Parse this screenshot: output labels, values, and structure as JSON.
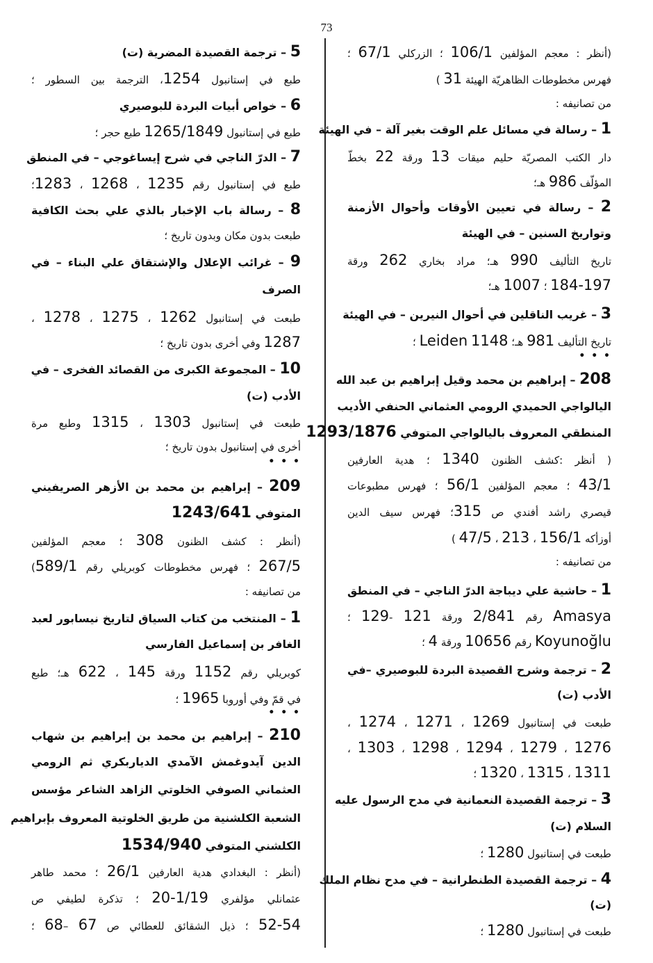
{
  "page_number": "73",
  "columns": [
    {
      "id": "right",
      "lines": [
        {
          "text": "(أنظر : معجم المؤلفين 106/1 ؛ الزركلي 67/1 ؛",
          "bold": false
        },
        {
          "text": "فهرس مخطوطات الظاهريّة الهيئة 31 )",
          "bold": false
        },
        {
          "text": "من تصانيفه :",
          "bold": false
        },
        {
          "text": "1 – رسالة في مسائل علم الوقت بغير آلة – في الهيئة",
          "bold": true
        },
        {
          "text": "دار الكتب المصريّة حليم ميقات 13 ورقة 22 بخطّ",
          "bold": false
        },
        {
          "text": "المؤلّف 986 هـ؛",
          "bold": false
        },
        {
          "text": "2 – رسالة في تعيين الأوقات وأحوال الأزمنة",
          "bold": true
        },
        {
          "text": "وتواريخ السنين – في الهيئة",
          "bold": true
        },
        {
          "text": "تاريخ التأليف 990 هـ؛ مراد بخاري 262 ورقة",
          "bold": false
        },
        {
          "text": "184-197 ؛ 1007 هـ؛",
          "bold": false
        },
        {
          "text": "3 – غريب الناقلين في أحوال النيرين – في الهيئة",
          "bold": true
        },
        {
          "text": "تاريخ التأليف 981 هـ؛ Leiden 1148 ؛",
          "bold": false
        },
        {
          "text": "• • •",
          "bold": true,
          "dots": true
        },
        {
          "text": "208 – إبراهيم بن محمد وقيل إبراهيم بن عبد الله",
          "bold": true
        },
        {
          "text": "اليالواجي الحميدي الرومي العثماني الحنفي الأديب",
          "bold": true
        },
        {
          "text": "المنطقي المعروف باليالواجي المتوفي 1293/1876",
          "bold": true
        },
        {
          "text": "( أنظر :كشف الظنون 1340 ؛ هدية العارفين",
          "bold": false
        },
        {
          "text": "43/1 ؛ معجم المؤلفين 56/1 ؛ فهرس مطبوعات",
          "bold": false
        },
        {
          "text": "قيصري راشد أفندي ص 315؛ فهرس سيف الدين",
          "bold": false
        },
        {
          "text": "أوزأكه 156/1 ، 213 ، 47/5 )",
          "bold": false
        },
        {
          "text": "من تصانيفه :",
          "bold": false
        },
        {
          "text": "1 – حاشية علي ديباجة الدرّ الناجي – في المنطق",
          "bold": true
        },
        {
          "text": "Amasya رقم 2/841 ورقة 121 -129 ؛",
          "bold": false
        },
        {
          "text": "Koyunoğlu رقم 10656 ورقة 4 ؛",
          "bold": false
        },
        {
          "text": "2 – ترجمة وشرح القصيدة البردة للبوصيري –في",
          "bold": true
        },
        {
          "text": "الأدب (ت)",
          "bold": true
        },
        {
          "text": "طبعت في إستانبول 1269 ، 1271 ، 1274 ،",
          "bold": false
        },
        {
          "text": "1276 ، 1279 ، 1294 ، 1298 ، 1303 ،",
          "bold": false
        },
        {
          "text": "1311 ، 1315 ، 1320 ؛",
          "bold": false
        },
        {
          "text": "3 – ترجمة القصيدة النعمانية في مدح الرسول عليه",
          "bold": true
        },
        {
          "text": "السلام (ت)",
          "bold": true
        },
        {
          "text": "طبعت في إستانبول 1280 ؛",
          "bold": false
        },
        {
          "text": "4 – ترجمة القصيدة الطنطرانية – في مدح نظام الملك",
          "bold": true
        },
        {
          "text": "(ت)",
          "bold": true
        },
        {
          "text": "طبعت في إستانبول 1280 ؛",
          "bold": false
        }
      ]
    },
    {
      "id": "left",
      "lines": [
        {
          "text": "5 – ترجمة القصيدة المضرية (ت)",
          "bold": true
        },
        {
          "text": "طبع في إستانبول 1254، الترجمة بين السطور ؛",
          "bold": false
        },
        {
          "text": "6 – خواص أبيات البردة للبوصيري",
          "bold": true
        },
        {
          "text": "طبع في إستانبول 1265/1849 طبع حجر ؛",
          "bold": false
        },
        {
          "text": "7 – الدرّ الناجي في شرح إيساغوجي – في المنطق",
          "bold": true
        },
        {
          "text": "طبع في إستانبول رقم 1235 ، 1268 ، 1283؛",
          "bold": false
        },
        {
          "text": "8 – رسالة باب الإخبار بالذي علي بحث الكافية",
          "bold": true
        },
        {
          "text": "طبعت بدون مكان وبدون تاريخ ؛",
          "bold": false
        },
        {
          "text": "9 – غرائب الإعلال والإشتقاق علي البناء – في",
          "bold": true
        },
        {
          "text": "الصرف",
          "bold": true
        },
        {
          "text": "طبعت في إستانبول 1262 ، 1275 ، 1278 ،",
          "bold": false
        },
        {
          "text": "1287 وفي أخرى بدون تاريخ ؛",
          "bold": false
        },
        {
          "text": "10 – المجموعة الكبرى من القصائد الفخرى – في",
          "bold": true
        },
        {
          "text": "الأدب (ت)",
          "bold": true
        },
        {
          "text": "طبعت في إستانبول 1303 ، 1315 وطبع مرة",
          "bold": false
        },
        {
          "text": "أخرى في إستانبول بدون تاريخ ؛",
          "bold": false
        },
        {
          "text": "• • •",
          "bold": true,
          "dots": true
        },
        {
          "text": "209 – إبراهيم بن محمد بن الأزهر الصريفيني",
          "bold": true
        },
        {
          "text": "المتوفي 1243/641",
          "bold": true
        },
        {
          "text": "(أنظر : كشف الظنون 308 ؛ معجم المؤلفين",
          "bold": false
        },
        {
          "text": "267/5 ؛ فهرس مخطوطات كوبريلي رقم 589/1)",
          "bold": false
        },
        {
          "text": "من تصانيفه :",
          "bold": false
        },
        {
          "text": "1 – المنتخب من كتاب السياق لتاريخ نيسابور لعبد",
          "bold": true
        },
        {
          "text": "الغافر بن إسماعيل الفارسي",
          "bold": true
        },
        {
          "text": "كوبريلي رقم 1152 ورقة 145 ، 622 هـ؛ طبع",
          "bold": false
        },
        {
          "text": "في قمّ وفي أوروبا 1965 ؛",
          "bold": false
        },
        {
          "text": "• • •",
          "bold": true,
          "dots": true
        },
        {
          "text": "210 – إبراهيم بن محمد بن إبراهيم بن شهاب",
          "bold": true
        },
        {
          "text": "الدين آيدوغمش الآمدي الدياربكري ثم الرومي",
          "bold": true
        },
        {
          "text": "العثماني الصوفي الخلوتي الزاهد الشاعر مؤسس",
          "bold": true
        },
        {
          "text": "الشعبة الكلشنية من طريق الخلوتية المعروف بإبراهيم",
          "bold": true
        },
        {
          "text": "الكلشني المتوفي 1534/940",
          "bold": true
        },
        {
          "text": "(أنظر : البغدادي هدية العارفين 26/1 ؛ محمد طاهر",
          "bold": false
        },
        {
          "text": "عثمانلي مؤلفري 1/19-20 ؛ تذكرة لطيفي ص",
          "bold": false
        },
        {
          "text": "52-54 ؛ ذيل الشقائق للعطائي ص 67 –68 ؛",
          "bold": false
        }
      ]
    }
  ]
}
